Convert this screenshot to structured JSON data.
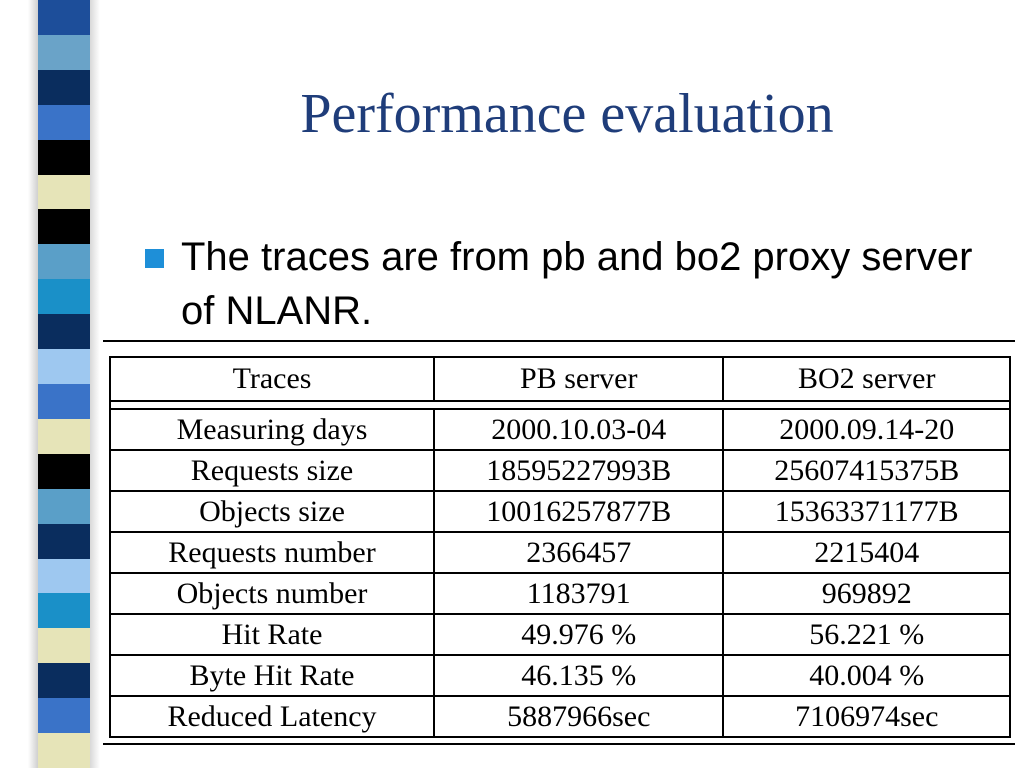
{
  "slide": {
    "title": "Performance evaluation",
    "bullet": "The traces are from pb and bo2 proxy server of NLANR.",
    "bullet_color": "#1e8fd8",
    "title_color": "#1f3d7a"
  },
  "stripe_colors": [
    "#1d4e9a",
    "#6aa3c8",
    "#0a2d5e",
    "#3a73c8",
    "#000000",
    "#e6e4b8",
    "#000000",
    "#5a9fc8",
    "#1a90c8",
    "#0a2d5e",
    "#9ec8f0",
    "#3a73c8",
    "#e6e4b8",
    "#000000",
    "#5a9fc8",
    "#0a2d5e",
    "#9ec8f0",
    "#1a90c8",
    "#e6e4b8",
    "#0a2d5e",
    "#3a73c8",
    "#e6e4b8"
  ],
  "table": {
    "headers": [
      "Traces",
      "PB server",
      "BO2 server"
    ],
    "rows": [
      [
        "Measuring days",
        "2000.10.03-04",
        "2000.09.14-20"
      ],
      [
        "Requests size",
        "18595227993B",
        "25607415375B"
      ],
      [
        "Objects size",
        "10016257877B",
        "15363371177B"
      ],
      [
        "Requests number",
        "2366457",
        "2215404"
      ],
      [
        "Objects number",
        "1183791",
        "969892"
      ],
      [
        "Hit Rate",
        "49.976 %",
        "56.221 %"
      ],
      [
        "Byte Hit Rate",
        "46.135 %",
        "40.004 %"
      ],
      [
        "Reduced Latency",
        "5887966sec",
        "7106974sec"
      ]
    ]
  }
}
